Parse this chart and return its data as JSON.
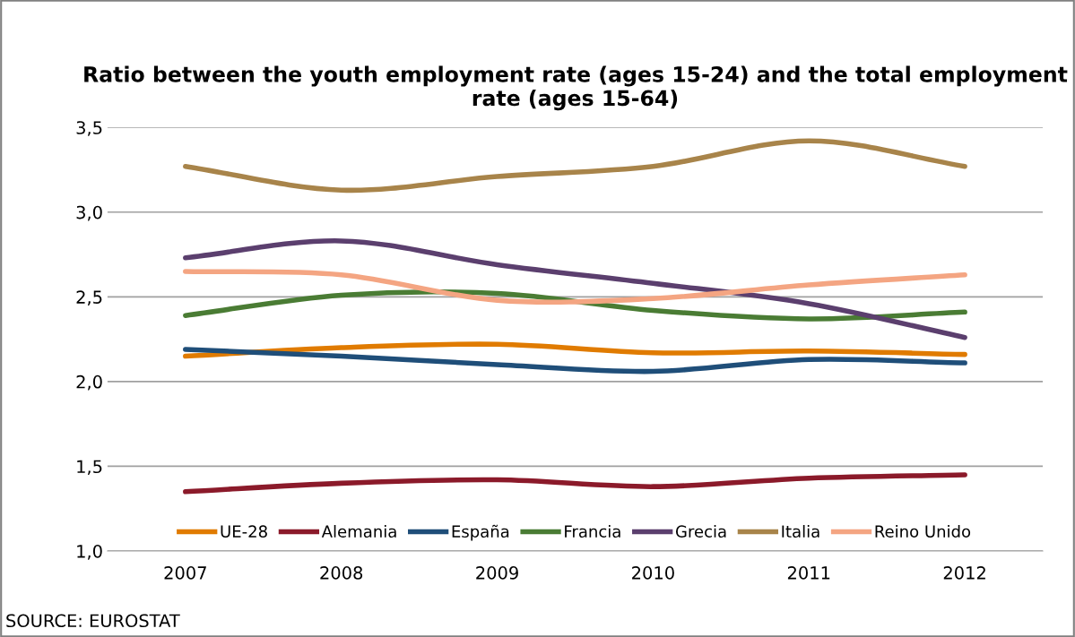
{
  "chart_data": {
    "type": "line",
    "title": "Ratio between the youth employment rate (ages 15-24) and the total employment rate (ages 15-64)",
    "categories": [
      "2007",
      "2008",
      "2009",
      "2010",
      "2011",
      "2012"
    ],
    "series": [
      {
        "name": "UE-28",
        "color": "#e07b00",
        "values": [
          2.15,
          2.2,
          2.22,
          2.17,
          2.18,
          2.16
        ]
      },
      {
        "name": "Alemania",
        "color": "#8b1a2a",
        "values": [
          1.35,
          1.4,
          1.42,
          1.38,
          1.43,
          1.45
        ]
      },
      {
        "name": "España",
        "color": "#1f4e79",
        "values": [
          2.19,
          2.15,
          2.1,
          2.06,
          2.13,
          2.11
        ]
      },
      {
        "name": "Francia",
        "color": "#4a7c34",
        "values": [
          2.39,
          2.51,
          2.52,
          2.42,
          2.37,
          2.41
        ]
      },
      {
        "name": "Grecia",
        "color": "#5b3f6e",
        "values": [
          2.73,
          2.83,
          2.69,
          2.58,
          2.46,
          2.26
        ]
      },
      {
        "name": "Italia",
        "color": "#a8844a",
        "values": [
          3.27,
          3.13,
          3.21,
          3.27,
          3.42,
          3.27
        ]
      },
      {
        "name": "Reino Unido",
        "color": "#f4a582",
        "values": [
          2.65,
          2.63,
          2.48,
          2.49,
          2.57,
          2.63
        ]
      }
    ],
    "ylim": [
      1.0,
      3.5
    ],
    "yticks": [
      {
        "value": 1.0,
        "label": "1,0"
      },
      {
        "value": 1.5,
        "label": "1,5"
      },
      {
        "value": 2.0,
        "label": "2,0"
      },
      {
        "value": 2.5,
        "label": "2,5"
      },
      {
        "value": 3.0,
        "label": "3,0"
      },
      {
        "value": 3.5,
        "label": "3,5"
      }
    ],
    "grid": "y",
    "legend": "bottom",
    "line_style": "solid",
    "marker": "none",
    "annotations": [
      "SOURCE: EUROSTAT"
    ]
  }
}
